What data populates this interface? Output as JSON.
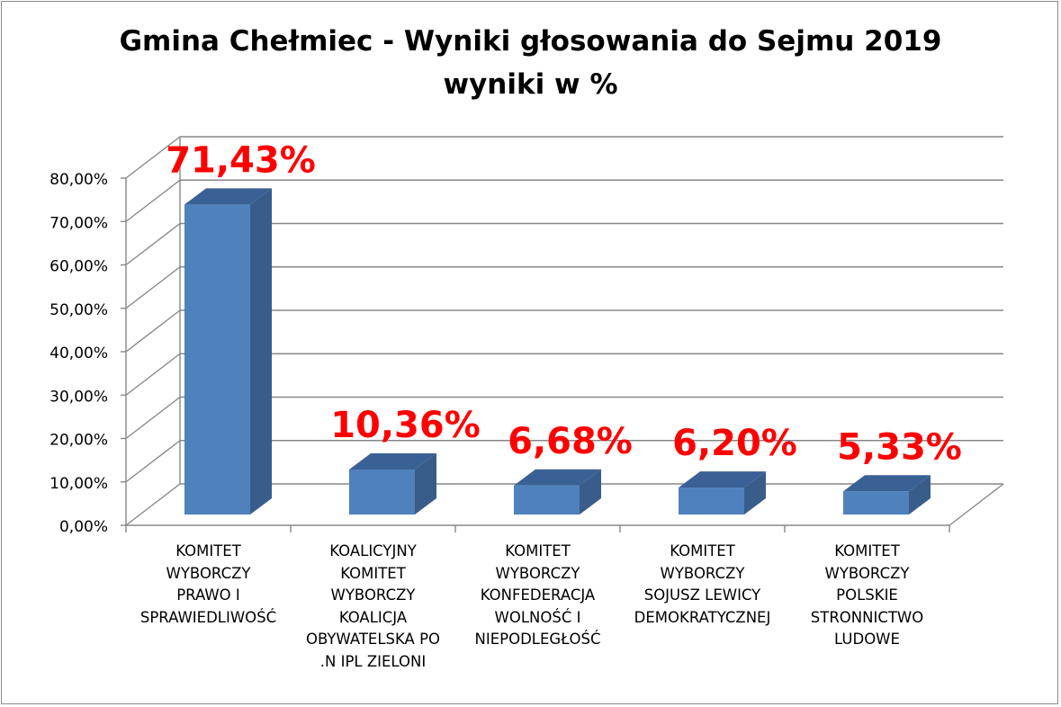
{
  "chart_data": {
    "type": "bar",
    "style": "3d-column",
    "title": "Gmina Chełmiec - Wyniki głosowania do Sejmu 2019",
    "subtitle": "wyniki w %",
    "categories": [
      [
        "KOMITET",
        "WYBORCZY",
        "PRAWO I",
        "SPRAWIEDLIWOŚĆ"
      ],
      [
        "KOALICYJNY",
        "KOMITET",
        "WYBORCZY",
        "KOALICJA",
        "OBYWATELSKA PO",
        ".N IPL ZIELONI"
      ],
      [
        "KOMITET",
        "WYBORCZY",
        "KONFEDERACJA",
        "WOLNOŚĆ I",
        "NIEPODLEGŁOŚĆ"
      ],
      [
        "KOMITET",
        "WYBORCZY",
        "SOJUSZ LEWICY",
        "DEMOKRATYCZNEJ"
      ],
      [
        "KOMITET",
        "WYBORCZY",
        "POLSKIE",
        "STRONNICTWO",
        "LUDOWE"
      ]
    ],
    "values": [
      71.43,
      10.36,
      6.68,
      6.2,
      5.33
    ],
    "data_labels": [
      "71,43%",
      "10,36%",
      "6,68%",
      "6,20%",
      "5,33%"
    ],
    "y_ticks": [
      "0,00%",
      "10,00%",
      "20,00%",
      "30,00%",
      "40,00%",
      "50,00%",
      "60,00%",
      "70,00%",
      "80,00%"
    ],
    "ylim": [
      0,
      80
    ],
    "grid": true,
    "legend": "none",
    "colors": {
      "bar_front": "#4f81bd",
      "bar_side": "#385d8a",
      "bar_top": "#3a6195",
      "data_label": "#ff0000",
      "grid": "#878787"
    }
  }
}
